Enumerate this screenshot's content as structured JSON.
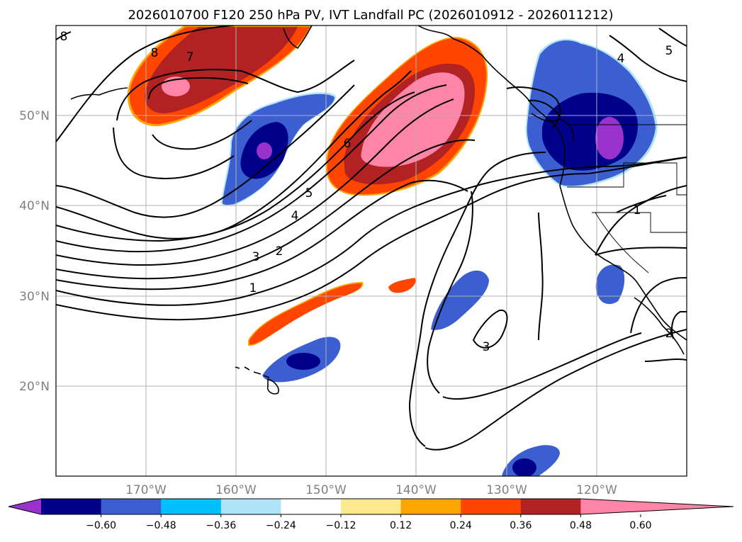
{
  "title": "2026010700 F120 250 hPa PV, IVT Landfall PC (2026010912 - 2026011212)",
  "lat_labels": [
    "50°N",
    "40°N",
    "30°N",
    "20°N"
  ],
  "lon_labels": [
    "170°W",
    "160°W",
    "150°W",
    "140°W",
    "130°W",
    "120°W"
  ],
  "colorbar": {
    "tick_labels": [
      "−0.60",
      "−0.48",
      "−0.36",
      "−0.24",
      "−0.12",
      "0.12",
      "0.24",
      "0.36",
      "0.48",
      "0.60"
    ],
    "colors": [
      "#9932cc",
      "#00008b",
      "#3b5fd0",
      "#00bfff",
      "#aee3fa",
      "#ffffff",
      "#fde98d",
      "#ffa500",
      "#ff4500",
      "#b22222",
      "#ff85a8"
    ]
  },
  "contour_labels": {
    "nw_8a": "8",
    "nw_8b": "8",
    "nw_7": "7",
    "center_6": "6",
    "center_5": "5",
    "center_4": "4",
    "center_3": "3",
    "center_2": "2",
    "center_1": "1",
    "sw_3": "3",
    "ne_4": "4",
    "ne_5": "5",
    "e_1": "1",
    "se_2": "2"
  },
  "map_extent": {
    "lon_range": [
      -180,
      -110
    ],
    "lat_range": [
      10,
      60
    ]
  }
}
